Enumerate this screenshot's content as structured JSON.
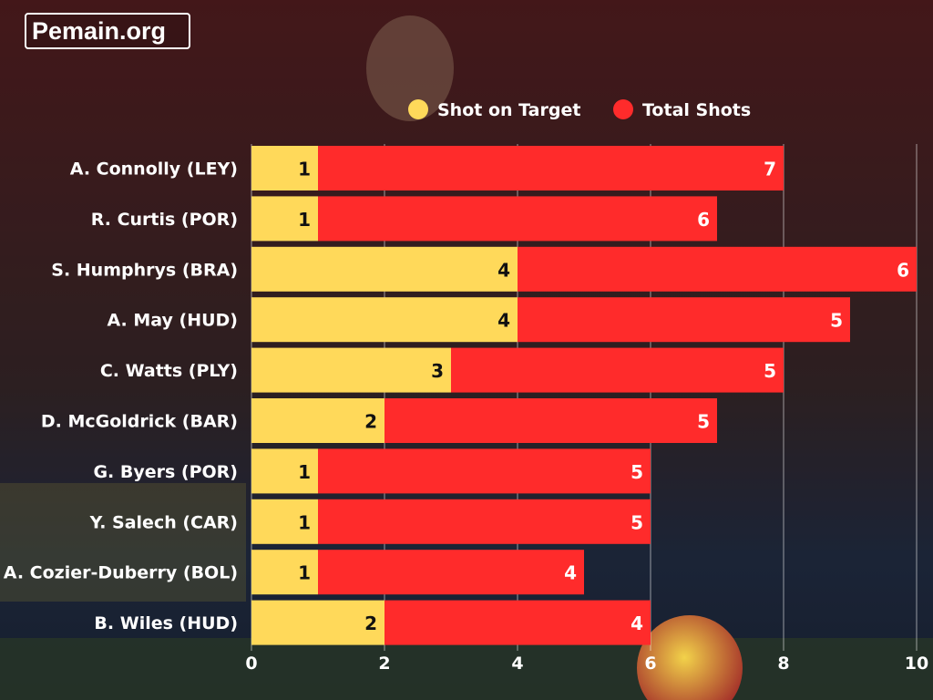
{
  "branding": {
    "logo_text": "Pemain.org"
  },
  "chart_data": {
    "type": "bar",
    "orientation": "horizontal",
    "stacked": true,
    "categories": [
      "A. Connolly (LEY)",
      "R. Curtis (POR)",
      "S. Humphrys (BRA)",
      "A. May (HUD)",
      "C. Watts (PLY)",
      "D. McGoldrick (BAR)",
      "G. Byers (POR)",
      "Y. Salech (CAR)",
      "A. Cozier-Duberry (BOL)",
      "B. Wiles (HUD)"
    ],
    "series": [
      {
        "name": "Shot on Target",
        "color": "#FFD95A",
        "values": [
          1,
          1,
          4,
          4,
          3,
          2,
          1,
          1,
          1,
          2
        ]
      },
      {
        "name": "Total Shots",
        "color": "#FF2B2B",
        "values": [
          7,
          6,
          6,
          5,
          5,
          5,
          5,
          5,
          4,
          4
        ]
      }
    ],
    "xlim": [
      0,
      10
    ],
    "xticks": [
      0,
      2,
      4,
      6,
      8,
      10
    ],
    "grid": true,
    "legend": "top"
  }
}
